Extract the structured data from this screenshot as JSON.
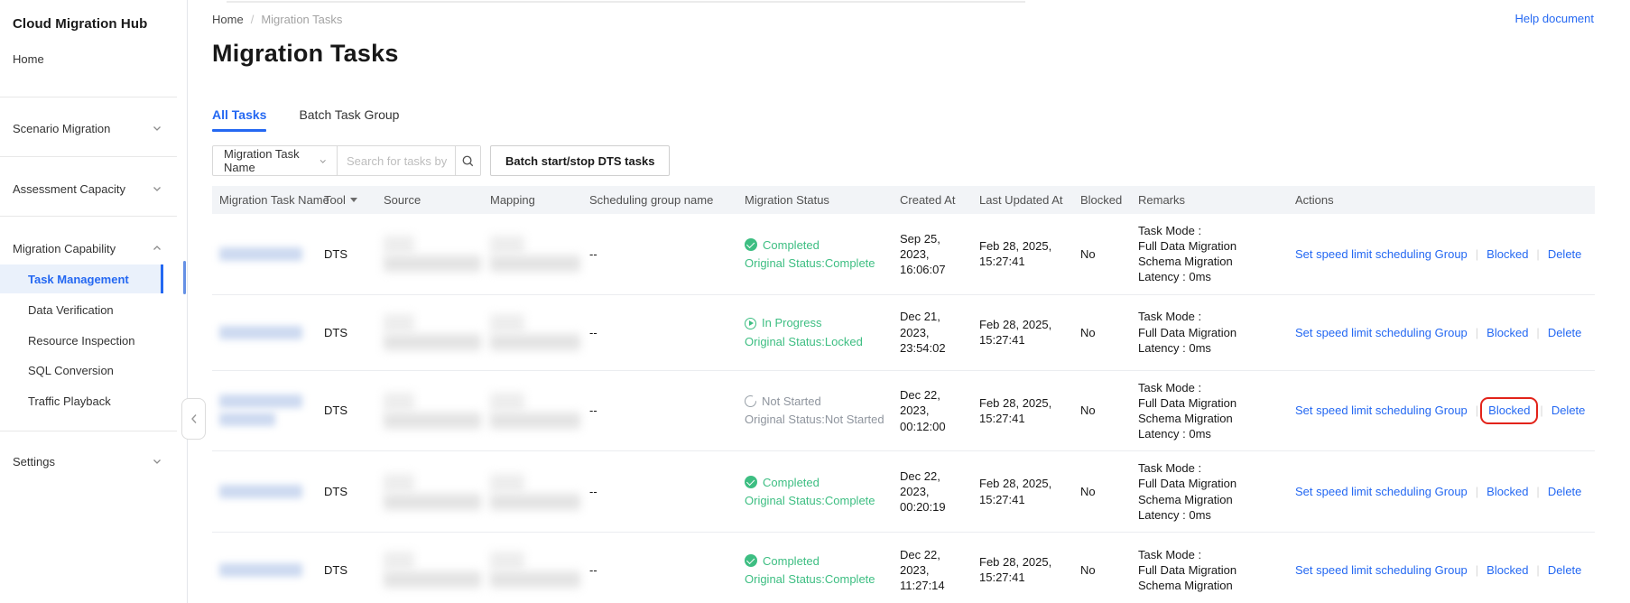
{
  "sidebar": {
    "title": "Cloud Migration Hub",
    "home": "Home",
    "groups": [
      {
        "label": "Scenario Migration",
        "expanded": false
      },
      {
        "label": "Assessment Capacity",
        "expanded": false
      },
      {
        "label": "Migration Capability",
        "expanded": true,
        "children": [
          {
            "label": "Task Management",
            "active": true
          },
          {
            "label": "Data Verification",
            "active": false
          },
          {
            "label": "Resource Inspection",
            "active": false
          },
          {
            "label": "SQL Conversion",
            "active": false
          },
          {
            "label": "Traffic Playback",
            "active": false
          }
        ]
      },
      {
        "label": "Settings",
        "expanded": false
      }
    ]
  },
  "header": {
    "breadcrumb": [
      "Home",
      "Migration Tasks"
    ],
    "breadcrumb_separator": "/",
    "help_link": "Help document",
    "page_title": "Migration Tasks"
  },
  "tabs": [
    {
      "label": "All Tasks",
      "active": true
    },
    {
      "label": "Batch Task Group",
      "active": false
    }
  ],
  "filters": {
    "dropdown_value": "Migration Task Name",
    "search_placeholder": "Search for tasks by crit",
    "batch_button": "Batch start/stop DTS tasks"
  },
  "table": {
    "columns": [
      "Migration Task Name",
      "Tool",
      "Source",
      "Mapping",
      "Scheduling group name",
      "Migration Status",
      "Created At",
      "Last Updated At",
      "Blocked",
      "Remarks",
      "Actions"
    ],
    "rows": [
      {
        "tool": "DTS",
        "scheduling_group": "--",
        "status": {
          "state": "completed",
          "label": "Completed",
          "original": "Original Status:Complete"
        },
        "created_at": "Sep 25, 2023, 16:06:07",
        "last_updated_at": "Feb 28, 2025, 15:27:41",
        "blocked": "No",
        "remarks": [
          "Task Mode :",
          "Full Data Migration",
          "Schema Migration",
          "Latency : 0ms"
        ],
        "actions": [
          "Set speed limit scheduling Group",
          "Blocked",
          "Delete"
        ],
        "highlight_action": null,
        "name_blur_lines": 1
      },
      {
        "tool": "DTS",
        "scheduling_group": "--",
        "status": {
          "state": "in_progress",
          "label": "In Progress",
          "original": "Original Status:Locked"
        },
        "created_at": "Dec 21, 2023, 23:54:02",
        "last_updated_at": "Feb 28, 2025, 15:27:41",
        "blocked": "No",
        "remarks": [
          "Task Mode :",
          "Full Data Migration",
          "Latency : 0ms"
        ],
        "actions": [
          "Set speed limit scheduling Group",
          "Blocked",
          "Delete"
        ],
        "highlight_action": null,
        "name_blur_lines": 1
      },
      {
        "tool": "DTS",
        "scheduling_group": "--",
        "status": {
          "state": "not_started",
          "label": "Not Started",
          "original": "Original Status:Not Started"
        },
        "created_at": "Dec 22, 2023, 00:12:00",
        "last_updated_at": "Feb 28, 2025, 15:27:41",
        "blocked": "No",
        "remarks": [
          "Task Mode :",
          "Full Data Migration",
          "Schema Migration",
          "Latency : 0ms"
        ],
        "actions": [
          "Set speed limit scheduling Group",
          "Blocked",
          "Delete"
        ],
        "highlight_action": "Blocked",
        "name_blur_lines": 2
      },
      {
        "tool": "DTS",
        "scheduling_group": "--",
        "status": {
          "state": "completed",
          "label": "Completed",
          "original": "Original Status:Complete"
        },
        "created_at": "Dec 22, 2023, 00:20:19",
        "last_updated_at": "Feb 28, 2025, 15:27:41",
        "blocked": "No",
        "remarks": [
          "Task Mode :",
          "Full Data Migration",
          "Schema Migration",
          "Latency : 0ms"
        ],
        "actions": [
          "Set speed limit scheduling Group",
          "Blocked",
          "Delete"
        ],
        "highlight_action": null,
        "name_blur_lines": 1
      },
      {
        "tool": "DTS",
        "scheduling_group": "--",
        "status": {
          "state": "completed",
          "label": "Completed",
          "original": "Original Status:Complete"
        },
        "created_at": "Dec 22, 2023, 11:27:14",
        "last_updated_at": "Feb 28, 2025, 15:27:41",
        "blocked": "No",
        "remarks": [
          "Task Mode :",
          "Full Data Migration",
          "Schema Migration"
        ],
        "actions": [
          "Set speed limit scheduling Group",
          "Blocked",
          "Delete"
        ],
        "highlight_action": null,
        "name_blur_lines": 1
      }
    ]
  },
  "colors": {
    "accent_blue": "#2468f2",
    "success_green": "#3dbe82",
    "muted_gray": "#8f959e",
    "annotation_red": "#e2231a",
    "header_bg": "#f2f4f7"
  }
}
